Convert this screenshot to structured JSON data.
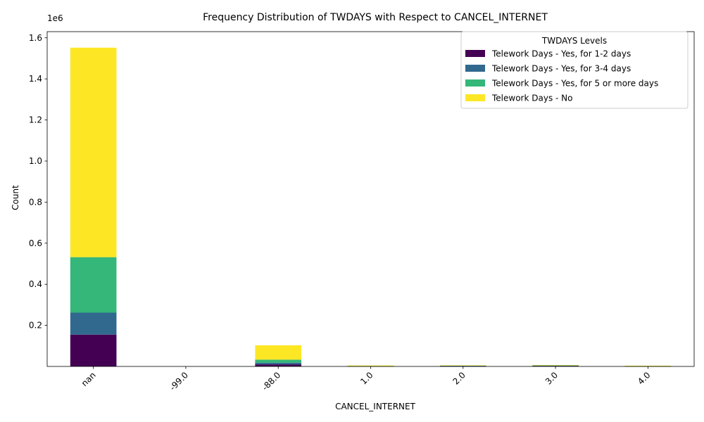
{
  "chart_data": {
    "type": "bar",
    "stacked": true,
    "title": "Frequency Distribution of TWDAYS with Respect to CANCEL_INTERNET",
    "xlabel": "CANCEL_INTERNET",
    "ylabel": "Count",
    "y_offset_text": "1e6",
    "y_scale": 1000000,
    "ylim": [
      0,
      1630000
    ],
    "yticks": [
      0.2,
      0.4,
      0.6,
      0.8,
      1.0,
      1.2,
      1.4,
      1.6
    ],
    "categories": [
      "nan",
      "-99.0",
      "-88.0",
      "1.0",
      "2.0",
      "3.0",
      "4.0"
    ],
    "legend": {
      "title": "TWDAYS Levels",
      "placement": "top-right"
    },
    "series": [
      {
        "name": "Telework Days - Yes, for 1-2 days",
        "color": "#440154",
        "values": [
          155000,
          0,
          10000,
          500,
          1000,
          3000,
          300
        ]
      },
      {
        "name": "Telework Days - Yes, for 3-4 days",
        "color": "#31688e",
        "values": [
          107000,
          0,
          8000,
          500,
          2500,
          1500,
          300
        ]
      },
      {
        "name": "Telework Days - Yes, for 5 or more days",
        "color": "#35b779",
        "values": [
          270000,
          0,
          15000,
          700,
          1500,
          1000,
          500
        ]
      },
      {
        "name": "Telework Days - No",
        "color": "#fde725",
        "values": [
          1020000,
          0,
          70000,
          3000,
          500,
          1500,
          2500
        ]
      }
    ]
  }
}
